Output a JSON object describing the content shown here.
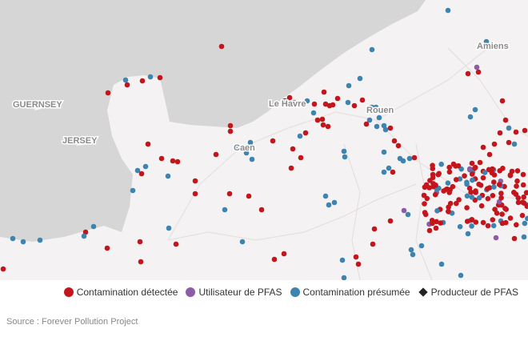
{
  "places": {
    "guernsey": "GUERNSEY",
    "jersey": "JERSEY",
    "le_havre": "Le Havre",
    "caen": "Caen",
    "rouen": "Rouen",
    "amiens": "Amiens"
  },
  "legend": [
    "Contamination détectée",
    "Utilisateur de PFAS",
    "Contamination présumée",
    "Producteur de PFAS"
  ],
  "source": "Source : Forever Pollution Project"
}
